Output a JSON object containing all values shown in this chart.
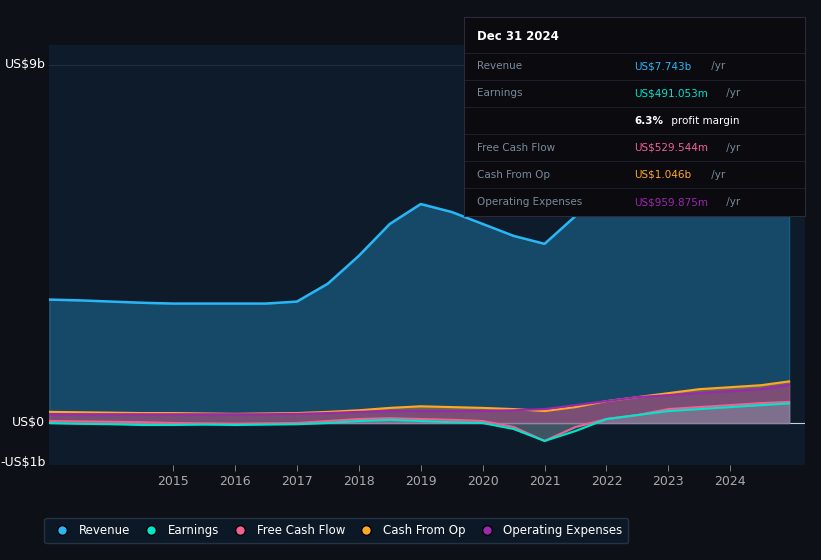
{
  "background_color": "#0d1117",
  "plot_bg_color": "#0d1b2a",
  "ylabel_top": "US$9b",
  "ylabel_zero": "US$0",
  "ylabel_neg": "-US$1b",
  "years": [
    2013.0,
    2013.5,
    2014.0,
    2014.5,
    2015.0,
    2015.5,
    2016.0,
    2016.5,
    2017.0,
    2017.5,
    2018.0,
    2018.5,
    2019.0,
    2019.5,
    2020.0,
    2020.5,
    2021.0,
    2021.5,
    2022.0,
    2022.5,
    2023.0,
    2023.5,
    2024.0,
    2024.5,
    2024.95
  ],
  "revenue": [
    3.1,
    3.08,
    3.05,
    3.02,
    3.0,
    3.0,
    3.0,
    3.0,
    3.05,
    3.5,
    4.2,
    5.0,
    5.5,
    5.3,
    5.0,
    4.7,
    4.5,
    5.2,
    6.2,
    7.2,
    8.2,
    8.0,
    7.8,
    7.75,
    7.743
  ],
  "earnings": [
    0.0,
    -0.02,
    -0.03,
    -0.05,
    -0.05,
    -0.04,
    -0.05,
    -0.04,
    -0.03,
    0.0,
    0.05,
    0.08,
    0.05,
    0.02,
    0.0,
    -0.15,
    -0.45,
    -0.2,
    0.1,
    0.2,
    0.3,
    0.35,
    0.4,
    0.45,
    0.491
  ],
  "free_cash_flow": [
    0.05,
    0.04,
    0.03,
    0.02,
    0.0,
    -0.01,
    -0.02,
    -0.01,
    0.0,
    0.05,
    0.1,
    0.12,
    0.1,
    0.08,
    0.05,
    -0.1,
    -0.45,
    -0.1,
    0.1,
    0.2,
    0.35,
    0.4,
    0.45,
    0.5,
    0.53
  ],
  "cash_from_op": [
    0.28,
    0.27,
    0.26,
    0.25,
    0.25,
    0.24,
    0.23,
    0.24,
    0.25,
    0.28,
    0.32,
    0.38,
    0.42,
    0.4,
    0.38,
    0.35,
    0.3,
    0.4,
    0.55,
    0.65,
    0.75,
    0.85,
    0.9,
    0.95,
    1.046
  ],
  "op_expenses": [
    0.22,
    0.22,
    0.22,
    0.22,
    0.22,
    0.22,
    0.22,
    0.22,
    0.23,
    0.25,
    0.28,
    0.3,
    0.3,
    0.3,
    0.3,
    0.32,
    0.35,
    0.45,
    0.55,
    0.65,
    0.7,
    0.75,
    0.8,
    0.85,
    0.96
  ],
  "revenue_color": "#29b6f6",
  "earnings_color": "#00e5cc",
  "free_cash_flow_color": "#f06292",
  "cash_from_op_color": "#ffa726",
  "op_expenses_color": "#9c27b0",
  "ylim_min": -1.05,
  "ylim_max": 9.5,
  "xlim_min": 2013.0,
  "xlim_max": 2025.2,
  "tick_years": [
    2015,
    2016,
    2017,
    2018,
    2019,
    2020,
    2021,
    2022,
    2023,
    2024
  ],
  "info_box": {
    "title": "Dec 31 2024",
    "rows": [
      {
        "label": "Revenue",
        "value": "US$7.743b",
        "suffix": " /yr",
        "color": "#29b6f6"
      },
      {
        "label": "Earnings",
        "value": "US$491.053m",
        "suffix": " /yr",
        "color": "#00e5cc"
      },
      {
        "label": "",
        "value": "6.3%",
        "suffix": " profit margin",
        "color": "white",
        "bold_value": true
      },
      {
        "label": "Free Cash Flow",
        "value": "US$529.544m",
        "suffix": " /yr",
        "color": "#f06292"
      },
      {
        "label": "Cash From Op",
        "value": "US$1.046b",
        "suffix": " /yr",
        "color": "#ffa726"
      },
      {
        "label": "Operating Expenses",
        "value": "US$959.875m",
        "suffix": " /yr",
        "color": "#9c27b0"
      }
    ]
  },
  "legend_items": [
    {
      "label": "Revenue",
      "color": "#29b6f6"
    },
    {
      "label": "Earnings",
      "color": "#00e5cc"
    },
    {
      "label": "Free Cash Flow",
      "color": "#f06292"
    },
    {
      "label": "Cash From Op",
      "color": "#ffa726"
    },
    {
      "label": "Operating Expenses",
      "color": "#9c27b0"
    }
  ]
}
